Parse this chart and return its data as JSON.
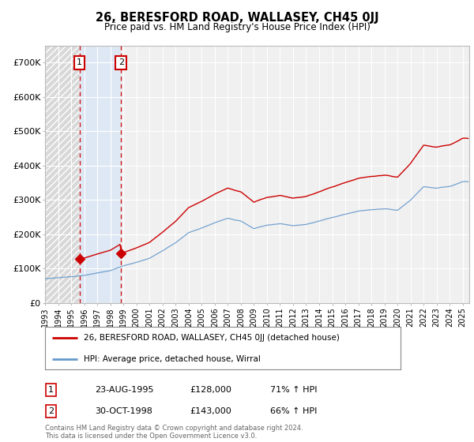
{
  "title": "26, BERESFORD ROAD, WALLASEY, CH45 0JJ",
  "subtitle": "Price paid vs. HM Land Registry's House Price Index (HPI)",
  "legend_line1": "26, BERESFORD ROAD, WALLASEY, CH45 0JJ (detached house)",
  "legend_line2": "HPI: Average price, detached house, Wirral",
  "transaction1_label": "1",
  "transaction1_date": "23-AUG-1995",
  "transaction1_price": "£128,000",
  "transaction1_hpi": "71% ↑ HPI",
  "transaction1_year": 1995.64,
  "transaction1_value": 128000,
  "transaction2_label": "2",
  "transaction2_date": "30-OCT-1998",
  "transaction2_price": "£143,000",
  "transaction2_hpi": "66% ↑ HPI",
  "transaction2_year": 1998.83,
  "transaction2_value": 143000,
  "price_color": "#cc0000",
  "hpi_color": "#6699cc",
  "annotation_box_color": "#cc0000",
  "ylim_min": 0,
  "ylim_max": 750000,
  "xlim_min": 1993.0,
  "xlim_max": 2025.5,
  "yticks": [
    0,
    100000,
    200000,
    300000,
    400000,
    500000,
    600000,
    700000
  ],
  "ytick_labels": [
    "£0",
    "£100K",
    "£200K",
    "£300K",
    "£400K",
    "£500K",
    "£600K",
    "£700K"
  ],
  "footer": "Contains HM Land Registry data © Crown copyright and database right 2024.\nThis data is licensed under the Open Government Licence v3.0.",
  "background_color": "#ffffff",
  "plot_bg_color": "#f0f0f0",
  "hatch_bg_color": "#cccccc",
  "between_tx_color": "#dce8f5"
}
